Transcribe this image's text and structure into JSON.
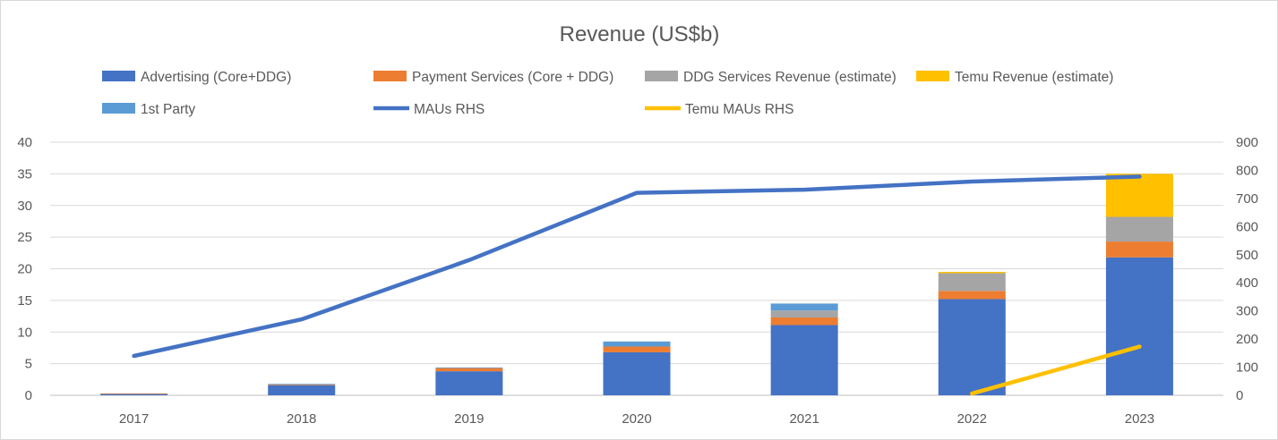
{
  "chart_data": {
    "type": "bar",
    "title": "Revenue (US$b)",
    "categories": [
      "2017",
      "2018",
      "2019",
      "2020",
      "2021",
      "2022",
      "2023"
    ],
    "ylim": [
      0,
      40
    ],
    "y_ticks": [
      "0",
      "5",
      "10",
      "15",
      "20",
      "25",
      "30",
      "35",
      "40"
    ],
    "y2lim": [
      0,
      900
    ],
    "y2_ticks": [
      "0",
      "100",
      "200",
      "300",
      "400",
      "500",
      "600",
      "700",
      "800",
      "900"
    ],
    "grid": true,
    "legend_position": "top",
    "series": [
      {
        "name": "Advertising (Core+DDG)",
        "kind": "bar",
        "axis": "left",
        "color": "#4472C4",
        "values": [
          0.2,
          1.6,
          3.8,
          6.8,
          11.1,
          15.2,
          21.8
        ]
      },
      {
        "name": "Payment Services (Core + DDG)",
        "kind": "bar",
        "axis": "left",
        "color": "#ED7D31",
        "values": [
          0.1,
          0.1,
          0.5,
          0.9,
          1.2,
          1.3,
          2.5
        ]
      },
      {
        "name": "DDG Services Revenue (estimate)",
        "kind": "bar",
        "axis": "left",
        "color": "#A5A5A5",
        "values": [
          0,
          0,
          0,
          0,
          1.1,
          2.8,
          3.9
        ]
      },
      {
        "name": "Temu Revenue (estimate)",
        "kind": "bar",
        "axis": "left",
        "color": "#FFC000",
        "values": [
          0,
          0,
          0,
          0,
          0,
          0.2,
          6.8
        ]
      },
      {
        "name": "1st Party",
        "kind": "bar",
        "axis": "left",
        "color": "#5B9BD5",
        "values": [
          0,
          0.1,
          0.1,
          0.8,
          1.1,
          0,
          0
        ]
      },
      {
        "name": "MAUs RHS",
        "kind": "line",
        "axis": "right",
        "color": "#4472C4",
        "values": [
          140,
          270,
          481,
          720,
          731,
          760,
          778
        ]
      },
      {
        "name": "Temu MAUs RHS",
        "kind": "line",
        "axis": "right",
        "color": "#FFC000",
        "values": [
          null,
          null,
          null,
          null,
          null,
          6,
          173
        ]
      }
    ]
  }
}
